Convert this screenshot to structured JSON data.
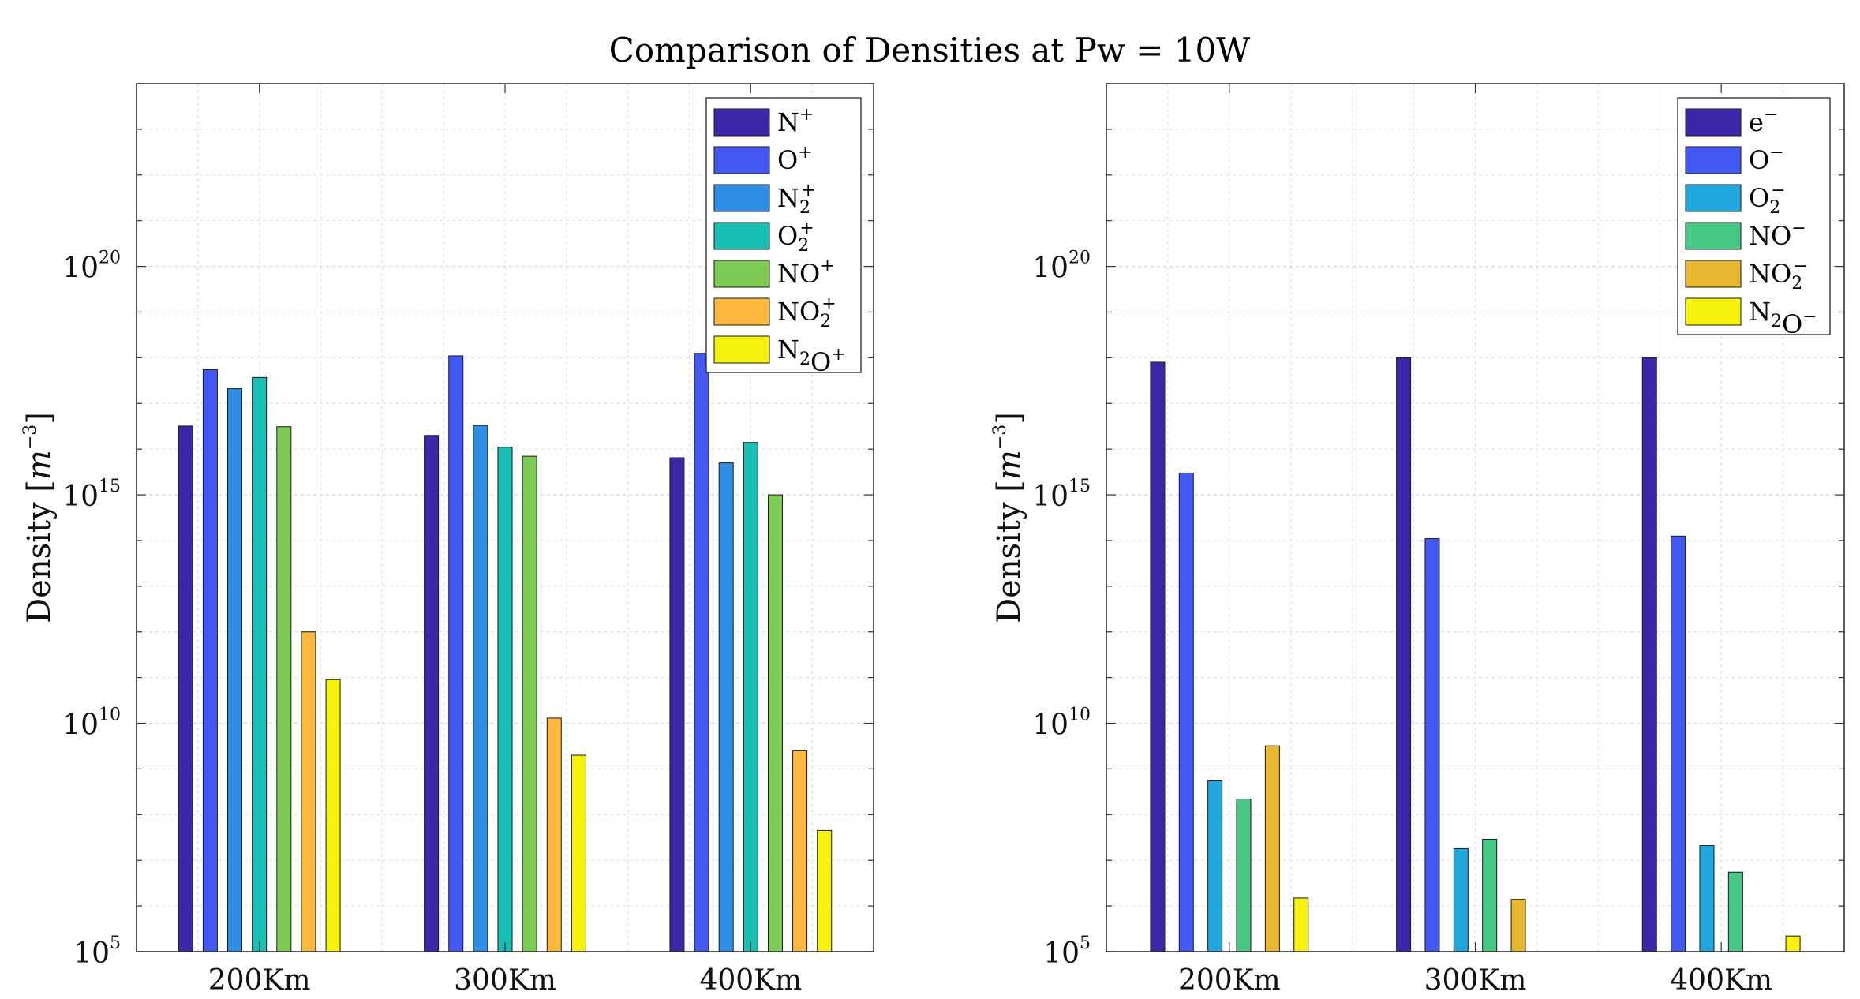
{
  "figure_title": "Comparison of Densities at Pw = 10W",
  "chart_data": [
    {
      "type": "bar",
      "title": "",
      "xlabel": "",
      "ylabel": "Density [m^-3]",
      "yscale": "log",
      "ylim": [
        100000.0,
        1e+24
      ],
      "ytick_exponents": [
        5,
        10,
        15,
        20
      ],
      "categories": [
        "200Km",
        "300Km",
        "400Km"
      ],
      "legend_location": "top-right",
      "series": [
        {
          "name": "N+",
          "base": "N",
          "sub": "",
          "sup": "+",
          "color": "#3a28a8",
          "values": [
            3.2e+16,
            2e+16,
            6500000000000000.0
          ]
        },
        {
          "name": "O+",
          "base": "O",
          "sup": "+",
          "sub": "",
          "color": "#4459f4",
          "values": [
            5.5e+17,
            1.1e+18,
            1.25e+18
          ]
        },
        {
          "name": "N2+",
          "base": "N",
          "sub": "2",
          "sup": "+",
          "color": "#2f8ee6",
          "values": [
            2.1e+17,
            3.3e+16,
            5000000000000000.0
          ]
        },
        {
          "name": "O2+",
          "base": "O",
          "sub": "2",
          "sup": "+",
          "color": "#19bfb3",
          "values": [
            3.7e+17,
            1.1e+16,
            1.4e+16
          ]
        },
        {
          "name": "NO+",
          "base": "NO",
          "sub": "",
          "sup": "+",
          "color": "#7ecb56",
          "values": [
            3.1e+16,
            7000000000000000.0,
            1000000000000000.0
          ]
        },
        {
          "name": "NO2+",
          "base": "NO",
          "sub": "2",
          "sup": "+",
          "color": "#fdb83f",
          "values": [
            1000000000000.0,
            13000000000.0,
            2500000000.0
          ]
        },
        {
          "name": "N2O+",
          "base": "N",
          "sub": "2",
          "sup": "+",
          "mid": "O",
          "color": "#f7f20d",
          "values": [
            90000000000.0,
            2000000000.0,
            45000000.0
          ]
        }
      ]
    },
    {
      "type": "bar",
      "title": "",
      "xlabel": "",
      "ylabel": "Density [m^-3]",
      "yscale": "log",
      "ylim": [
        100000.0,
        1e+24
      ],
      "ytick_exponents": [
        5,
        10,
        15,
        20
      ],
      "categories": [
        "200Km",
        "300Km",
        "400Km"
      ],
      "legend_location": "top-right",
      "series": [
        {
          "name": "e-",
          "base": "e",
          "sub": "",
          "sup": "−",
          "color": "#3a28a8",
          "values": [
            8e+17,
            1e+18,
            1e+18
          ]
        },
        {
          "name": "O-",
          "base": "O",
          "sub": "",
          "sup": "−",
          "color": "#4459f4",
          "values": [
            3000000000000000.0,
            110000000000000.0,
            125000000000000.0
          ]
        },
        {
          "name": "O2-",
          "base": "O",
          "sub": "2",
          "sup": "−",
          "color": "#20a8de",
          "values": [
            550000000.0,
            18000000.0,
            21000000.0
          ]
        },
        {
          "name": "NO-",
          "base": "NO",
          "sub": "",
          "sup": "−",
          "color": "#47c884",
          "values": [
            220000000.0,
            29000000.0,
            5500000.0
          ]
        },
        {
          "name": "NO2-",
          "base": "NO",
          "sub": "2",
          "sup": "−",
          "color": "#e6b72f",
          "values": [
            3200000000.0,
            1400000.0,
            0
          ]
        },
        {
          "name": "N2O-",
          "base": "N",
          "sub": "2",
          "sup": "−",
          "mid": "O",
          "color": "#f7f20d",
          "values": [
            1500000.0,
            0,
            220000.0
          ]
        }
      ]
    }
  ]
}
